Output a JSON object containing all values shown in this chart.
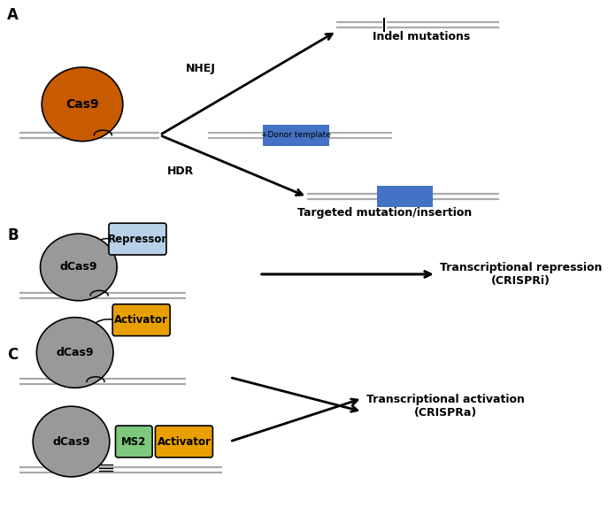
{
  "bg_color": "#ffffff",
  "cas9_color": "#c85a00",
  "dcas9_color": "#999999",
  "repressor_color": "#b8d0e8",
  "activator_color": "#e8a000",
  "ms2_color": "#7dc87d",
  "blue_insert_color": "#4472c4",
  "dna_color": "#888888",
  "label_A": "A",
  "label_B": "B",
  "label_C": "C",
  "nhej_label": "NHEJ",
  "hdr_label": "HDR",
  "donor_label": "+Donor template",
  "indel_label": "Indel mutations",
  "targeted_label": "Targeted mutation/insertion",
  "repressor_label": "Repressor",
  "dcas9_label": "dCas9",
  "cas9_label": "Cas9",
  "transcriptional_repression": "Transcriptional repression\n(CRISPRi)",
  "activator_label": "Activator",
  "ms2_label": "MS2",
  "transcriptional_activation": "Transcriptional activation\n(CRISPRa)"
}
